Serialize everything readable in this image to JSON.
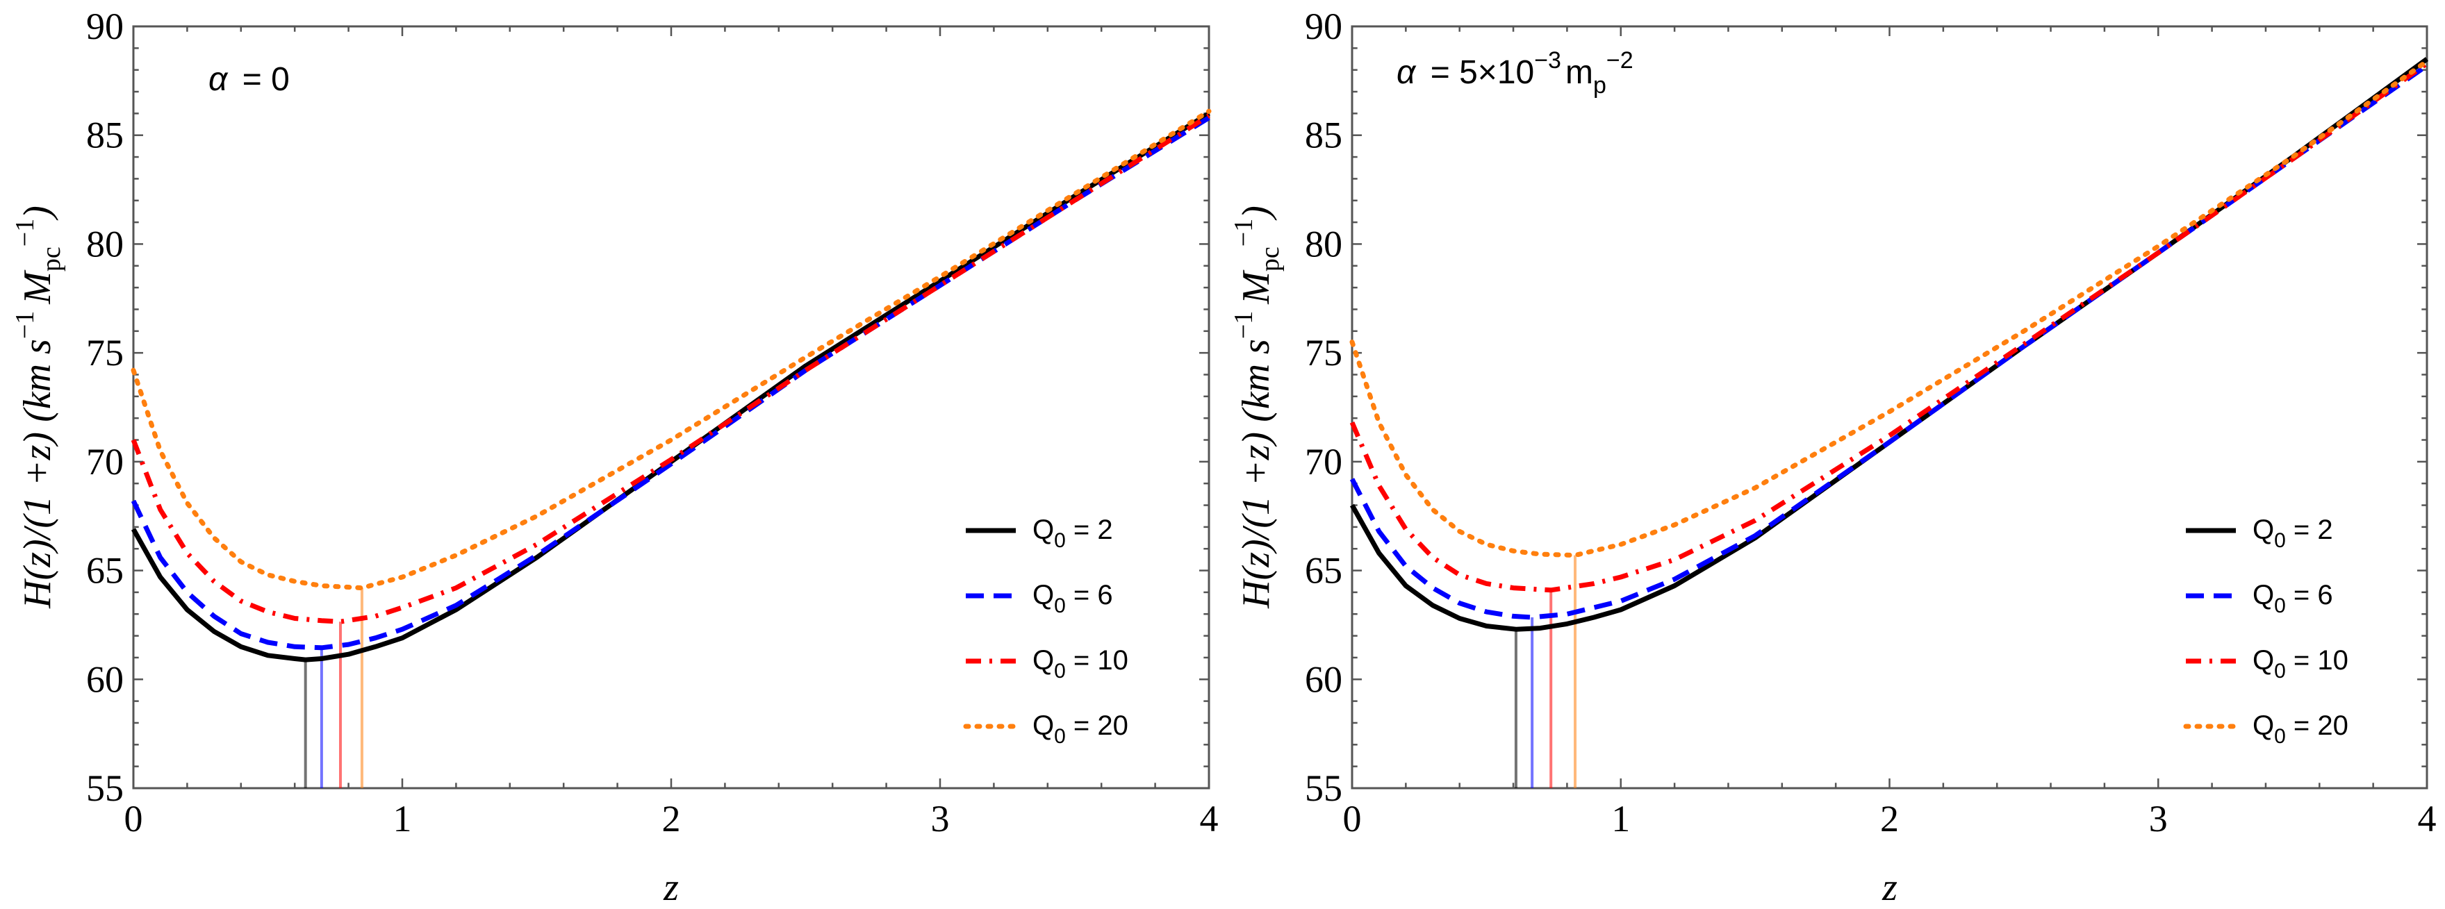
{
  "chart_data": [
    {
      "type": "line",
      "annotation": {
        "alpha_symbol": "α",
        "value": "= 0"
      },
      "xlabel": "z",
      "ylabel": {
        "prefix": "H(z)/(1 +z) (km s",
        "exp1": "−1",
        "M": "M",
        "pc": "pc",
        "exp2": "−1",
        "close": ")"
      },
      "xlim": [
        0,
        4
      ],
      "ylim": [
        55,
        90
      ],
      "xticks": [
        0,
        1,
        2,
        3,
        4
      ],
      "yticks": [
        55,
        60,
        65,
        70,
        75,
        80,
        85,
        90
      ],
      "legend_position": "lower-right",
      "series": [
        {
          "name": "Q",
          "sub": "0",
          "suffix": " = 2",
          "color": "#000000",
          "style": "solid",
          "x": [
            0,
            0.1,
            0.2,
            0.3,
            0.4,
            0.5,
            0.6,
            0.64,
            0.7,
            0.8,
            0.9,
            1.0,
            1.2,
            1.5,
            2.0,
            2.5,
            3.0,
            3.5,
            4.0
          ],
          "y": [
            66.9,
            64.7,
            63.2,
            62.2,
            61.5,
            61.1,
            60.95,
            60.9,
            60.95,
            61.15,
            61.5,
            61.9,
            63.2,
            65.6,
            70.0,
            74.4,
            78.3,
            82.2,
            86.0
          ],
          "minimum": {
            "x": 0.64,
            "y": 60.9
          }
        },
        {
          "name": "Q",
          "sub": "0",
          "suffix": " = 6",
          "color": "#0000ff",
          "style": "dashed",
          "x": [
            0,
            0.1,
            0.2,
            0.3,
            0.4,
            0.5,
            0.6,
            0.7,
            0.8,
            0.9,
            1.0,
            1.2,
            1.5,
            2.0,
            2.5,
            3.0,
            3.5,
            4.0
          ],
          "y": [
            68.2,
            65.6,
            64.0,
            62.9,
            62.1,
            61.7,
            61.5,
            61.45,
            61.6,
            61.9,
            62.3,
            63.4,
            65.7,
            69.9,
            74.2,
            78.1,
            82.0,
            85.8
          ],
          "minimum": {
            "x": 0.7,
            "y": 61.45
          }
        },
        {
          "name": "Q",
          "sub": "0",
          "suffix": " = 10",
          "color": "#ff0000",
          "style": "dashdot",
          "x": [
            0,
            0.1,
            0.2,
            0.3,
            0.4,
            0.5,
            0.6,
            0.7,
            0.77,
            0.9,
            1.0,
            1.2,
            1.5,
            2.0,
            2.5,
            3.0,
            3.5,
            4.0
          ],
          "y": [
            71.0,
            67.8,
            65.8,
            64.5,
            63.6,
            63.1,
            62.8,
            62.7,
            62.65,
            62.9,
            63.3,
            64.2,
            66.2,
            70.1,
            74.2,
            78.1,
            82.0,
            85.9
          ],
          "minimum": {
            "x": 0.77,
            "y": 62.65
          }
        },
        {
          "name": "Q",
          "sub": "0",
          "suffix": " = 20",
          "color": "#ff7f0e",
          "style": "dotted",
          "x": [
            0,
            0.1,
            0.2,
            0.3,
            0.4,
            0.5,
            0.6,
            0.7,
            0.85,
            1.0,
            1.2,
            1.5,
            2.0,
            2.5,
            3.0,
            3.5,
            4.0
          ],
          "y": [
            74.2,
            70.5,
            68.1,
            66.5,
            65.4,
            64.8,
            64.5,
            64.3,
            64.2,
            64.7,
            65.7,
            67.5,
            71.0,
            74.8,
            78.5,
            82.3,
            86.1
          ],
          "minimum": {
            "x": 0.85,
            "y": 64.2
          }
        }
      ]
    },
    {
      "type": "line",
      "annotation": {
        "alpha_symbol": "α",
        "value": "= 5×10",
        "exp": "−3",
        "unit": "m",
        "unit_sub": "p",
        "unit_exp": "−2"
      },
      "xlabel": "z",
      "ylabel": {
        "prefix": "H(z)/(1 +z) (km s",
        "exp1": "−1",
        "M": "M",
        "pc": "pc",
        "exp2": "−1",
        "close": ")"
      },
      "xlim": [
        0,
        4
      ],
      "ylim": [
        55,
        90
      ],
      "xticks": [
        0,
        1,
        2,
        3,
        4
      ],
      "yticks": [
        55,
        60,
        65,
        70,
        75,
        80,
        85,
        90
      ],
      "legend_position": "lower-right",
      "series": [
        {
          "name": "Q",
          "sub": "0",
          "suffix": " = 2",
          "color": "#000000",
          "style": "solid",
          "x": [
            0,
            0.1,
            0.2,
            0.3,
            0.4,
            0.5,
            0.61,
            0.7,
            0.8,
            0.9,
            1.0,
            1.2,
            1.5,
            2.0,
            2.5,
            3.0,
            3.5,
            4.0
          ],
          "y": [
            68.0,
            65.8,
            64.3,
            63.4,
            62.8,
            62.45,
            62.3,
            62.35,
            62.55,
            62.85,
            63.2,
            64.3,
            66.5,
            70.9,
            75.3,
            79.6,
            84.0,
            88.5
          ],
          "minimum": {
            "x": 0.61,
            "y": 62.3
          }
        },
        {
          "name": "Q",
          "sub": "0",
          "suffix": " = 6",
          "color": "#0000ff",
          "style": "dashed",
          "x": [
            0,
            0.1,
            0.2,
            0.3,
            0.4,
            0.5,
            0.6,
            0.67,
            0.8,
            0.9,
            1.0,
            1.2,
            1.5,
            2.0,
            2.5,
            3.0,
            3.5,
            4.0
          ],
          "y": [
            69.2,
            66.8,
            65.2,
            64.2,
            63.5,
            63.1,
            62.9,
            62.85,
            63.0,
            63.3,
            63.6,
            64.6,
            66.6,
            70.9,
            75.3,
            79.6,
            83.9,
            88.2
          ],
          "minimum": {
            "x": 0.67,
            "y": 62.85
          }
        },
        {
          "name": "Q",
          "sub": "0",
          "suffix": " = 10",
          "color": "#ff0000",
          "style": "dashdot",
          "x": [
            0,
            0.1,
            0.2,
            0.3,
            0.4,
            0.5,
            0.6,
            0.74,
            0.9,
            1.0,
            1.2,
            1.5,
            2.0,
            2.5,
            3.0,
            3.5,
            4.0
          ],
          "y": [
            71.8,
            68.9,
            66.9,
            65.6,
            64.8,
            64.4,
            64.2,
            64.1,
            64.4,
            64.7,
            65.5,
            67.3,
            71.2,
            75.4,
            79.6,
            83.9,
            88.3
          ],
          "minimum": {
            "x": 0.74,
            "y": 64.1
          }
        },
        {
          "name": "Q",
          "sub": "0",
          "suffix": " = 20",
          "color": "#ff7f0e",
          "style": "dotted",
          "x": [
            0,
            0.1,
            0.2,
            0.3,
            0.4,
            0.5,
            0.6,
            0.7,
            0.83,
            1.0,
            1.2,
            1.5,
            2.0,
            2.5,
            3.0,
            3.5,
            4.0
          ],
          "y": [
            75.5,
            71.8,
            69.4,
            67.8,
            66.8,
            66.2,
            65.9,
            65.75,
            65.7,
            66.2,
            67.1,
            68.8,
            72.3,
            76.0,
            79.9,
            84.0,
            88.4
          ],
          "minimum": {
            "x": 0.83,
            "y": 65.7
          }
        }
      ]
    }
  ]
}
